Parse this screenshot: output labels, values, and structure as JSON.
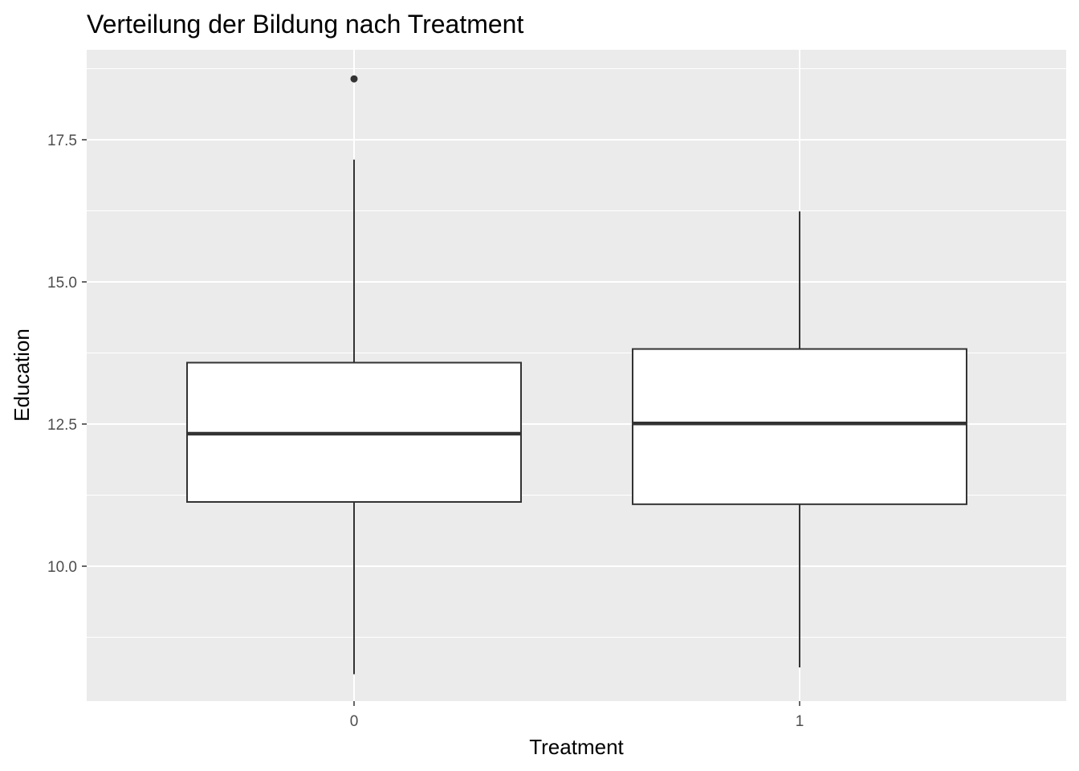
{
  "chart_data": {
    "type": "boxplot",
    "title": "Verteilung der Bildung nach Treatment",
    "xlabel": "Treatment",
    "ylabel": "Education",
    "categories": [
      "0",
      "1"
    ],
    "ylim": [
      7.5,
      19.0
    ],
    "yticks": [
      10.0,
      12.5,
      15.0,
      17.5
    ],
    "ytick_labels": [
      "10.0",
      "12.5",
      "15.0",
      "17.5"
    ],
    "grid": true,
    "panel_color": "#ebebeb",
    "box_fill": "#ffffff",
    "line_color": "#333333",
    "boxes": [
      {
        "category": "0",
        "whisker_low": 8.1,
        "q1": 11.13,
        "median": 12.33,
        "q3": 13.58,
        "whisker_high": 17.15,
        "outliers": [
          18.57
        ]
      },
      {
        "category": "1",
        "whisker_low": 8.22,
        "q1": 11.09,
        "median": 12.51,
        "q3": 13.82,
        "whisker_high": 16.24,
        "outliers": []
      }
    ]
  }
}
